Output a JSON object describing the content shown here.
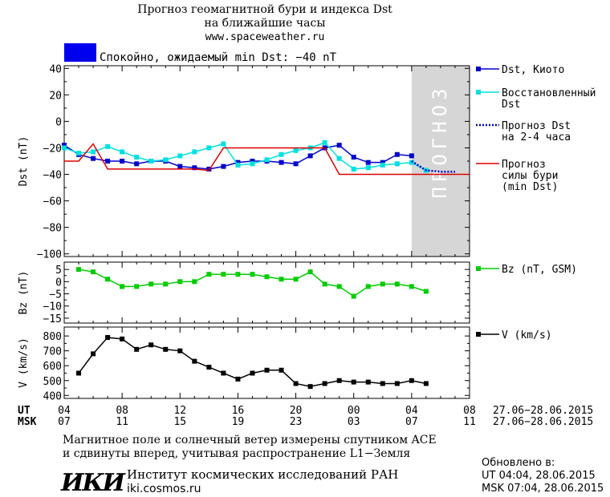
{
  "header": {
    "title_line1": "Прогноз геомагнитной бури и индекса Dst",
    "title_line2": "на ближайшие часы",
    "url": "www.spaceweather.ru",
    "status_text": "Спокойно, ожидаемый min Dst: −40 nT",
    "status_color": "#0000ee"
  },
  "forecast_zone_label": "ПРОГНОЗ",
  "time_axis": {
    "ut_label": "UT",
    "msk_label": "MSK",
    "ut_ticks": [
      "04",
      "08",
      "12",
      "16",
      "20",
      "00",
      "04",
      "08"
    ],
    "msk_ticks": [
      "07",
      "11",
      "15",
      "19",
      "23",
      "03",
      "07",
      "11"
    ],
    "date_range_ut": "27.06−28.06.2015",
    "date_range_msk": "27.06−28.06.2015"
  },
  "chart_data": [
    {
      "type": "line",
      "panel": "dst",
      "ylabel": "Dst (nT)",
      "xlim_hours": [
        0,
        28
      ],
      "ylim": [
        -102,
        42
      ],
      "yticks": [
        40,
        20,
        0,
        -20,
        -40,
        -60,
        -80,
        -100
      ],
      "forecast_region_hours": [
        24,
        28
      ],
      "series": [
        {
          "name": "Dst, Киото",
          "color": "#0000cc",
          "marker": "square",
          "x": [
            0,
            1,
            2,
            3,
            4,
            5,
            6,
            7,
            8,
            9,
            10,
            11,
            12,
            13,
            14,
            15,
            16,
            17,
            18,
            19,
            20,
            21,
            22,
            23,
            24
          ],
          "y": [
            -18,
            -25,
            -28,
            -30,
            -30,
            -32,
            -30,
            -30,
            -34,
            -35,
            -36,
            -34,
            -31,
            -30,
            -30,
            -31,
            -32,
            -26,
            -20,
            -18,
            -27,
            -31,
            -31,
            -25,
            -26
          ]
        },
        {
          "name": "Восстановленный Dst",
          "color": "#00e0e0",
          "marker": "square",
          "x": [
            0,
            1,
            2,
            3,
            4,
            5,
            6,
            7,
            8,
            9,
            10,
            11,
            12,
            13,
            14,
            15,
            16,
            17,
            18,
            19,
            20,
            21,
            22,
            23,
            24,
            25
          ],
          "y": [
            -20,
            -24,
            -23,
            -19,
            -23,
            -27,
            -30,
            -29,
            -26,
            -23,
            -20,
            -17,
            -33,
            -32,
            -29,
            -25,
            -22,
            -20,
            -16,
            -28,
            -36,
            -35,
            -33,
            -32,
            -31,
            -37
          ]
        },
        {
          "name": "Прогноз Dst на 2-4 часа",
          "color": "#0000cc",
          "dashed": true,
          "x": [
            24,
            25,
            26,
            27
          ],
          "y": [
            -30,
            -37,
            -38,
            -38
          ]
        },
        {
          "name": "Прогноз силы бури (min Dst)",
          "color": "#dd0000",
          "x": [
            0,
            1,
            2,
            3,
            4,
            5,
            6,
            7,
            8,
            9,
            10,
            11,
            12,
            13,
            14,
            15,
            16,
            17,
            18,
            19,
            20,
            21,
            22,
            23,
            24,
            25,
            26,
            27,
            28
          ],
          "y": [
            -30,
            -30,
            -17,
            -36,
            -36,
            -36,
            -36,
            -36,
            -36,
            -36,
            -37,
            -20,
            -20,
            -20,
            -20,
            -20,
            -20,
            -20,
            -20,
            -40,
            -40,
            -40,
            -40,
            -40,
            -40,
            -40,
            -40,
            -40,
            -40
          ]
        }
      ],
      "legend": [
        {
          "lines": [
            "Dst, Киото"
          ]
        },
        {
          "lines": [
            "Восстановленный",
            "Dst"
          ]
        },
        {
          "lines": [
            "Прогноз Dst",
            "на 2-4 часа"
          ]
        },
        {
          "lines": [
            "Прогноз",
            "силы бури",
            "(min Dst)"
          ]
        }
      ]
    },
    {
      "type": "line",
      "panel": "bz",
      "ylabel": "Bz (nT)",
      "xlim_hours": [
        0,
        28
      ],
      "ylim": [
        -17,
        8
      ],
      "yticks": [
        5,
        0,
        -5,
        -10,
        -15
      ],
      "series": [
        {
          "name": "Bz (nT, GSM)",
          "color": "#00cc00",
          "marker": "square",
          "x": [
            1,
            2,
            3,
            4,
            5,
            6,
            7,
            8,
            9,
            10,
            11,
            12,
            13,
            14,
            15,
            16,
            17,
            18,
            19,
            20,
            21,
            22,
            23,
            24,
            25
          ],
          "y": [
            5,
            4,
            1,
            -2,
            -2,
            -1,
            -1,
            0,
            0,
            3,
            3,
            3,
            3,
            2,
            1,
            1,
            4,
            -1,
            -2,
            -6,
            -2,
            -1,
            -1,
            -2,
            -4
          ]
        }
      ],
      "legend": [
        {
          "lines": [
            "Bz (nT, GSM)"
          ]
        }
      ]
    },
    {
      "type": "line",
      "panel": "v",
      "ylabel": "V (km/s)",
      "xlim_hours": [
        0,
        28
      ],
      "ylim": [
        380,
        860
      ],
      "yticks": [
        800,
        700,
        600,
        500,
        400
      ],
      "series": [
        {
          "name": "V (km/s)",
          "color": "#000000",
          "marker": "square",
          "x": [
            1,
            2,
            3,
            4,
            5,
            6,
            7,
            8,
            9,
            10,
            11,
            12,
            13,
            14,
            15,
            16,
            17,
            18,
            19,
            20,
            21,
            22,
            23,
            24,
            25
          ],
          "y": [
            550,
            680,
            790,
            780,
            710,
            740,
            710,
            700,
            630,
            590,
            550,
            510,
            550,
            570,
            570,
            480,
            460,
            480,
            500,
            490,
            490,
            480,
            480,
            500,
            480
          ]
        }
      ],
      "legend": [
        {
          "lines": [
            "V (km/s)"
          ]
        }
      ]
    }
  ],
  "footer": {
    "note_line1": "Магнитное поле и солнечный ветер измерены спутником ACE",
    "note_line2": "и сдвинуты вперед, учитывая распространение L1−Земля",
    "logo_text": "ИКИ",
    "institute": "Институт космических исследований РАН",
    "site": "iki.cosmos.ru",
    "updated_label": "Обновлено в:",
    "updated_ut": "UT  04:04, 28.06.2015",
    "updated_msk": "MSK 07:04, 28.06.2015"
  }
}
